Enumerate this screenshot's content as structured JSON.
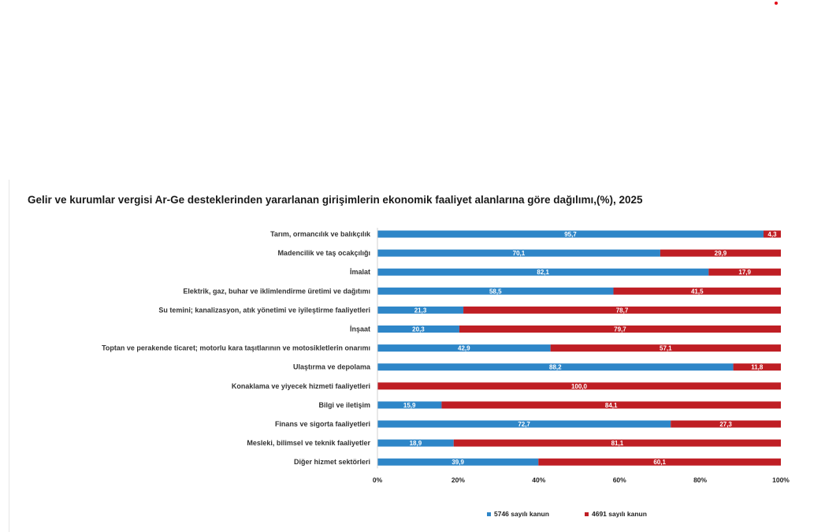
{
  "chart_data": {
    "type": "bar",
    "orientation": "horizontal-stacked-100",
    "title": "Gelir ve kurumlar vergisi Ar-Ge desteklerinden yararlanan girişimlerin ekonomik faaliyet alanlarına göre dağılımı,(%), 2025",
    "categories": [
      "Tarım, ormancılık ve balıkçılık",
      "Madencilik ve taş ocakçılığı",
      "İmalat",
      "Elektrik, gaz, buhar ve iklimlendirme üretimi ve dağıtımı",
      "Su temini; kanalizasyon, atık yönetimi ve iyileştirme faaliyetleri",
      "İnşaat",
      "Toptan ve perakende ticaret; motorlu kara taşıtlarının ve motosikletlerin onarımı",
      "Ulaştırma ve depolama",
      "Konaklama ve yiyecek hizmeti faaliyetleri",
      "Bilgi ve iletişim",
      "Finans ve sigorta faaliyetleri",
      "Mesleki, bilimsel ve teknik faaliyetler",
      "Diğer hizmet sektörleri"
    ],
    "series": [
      {
        "name": "5746 sayılı kanun",
        "color": "#2e86c8",
        "values": [
          95.7,
          70.1,
          82.1,
          58.5,
          21.3,
          20.3,
          42.9,
          88.2,
          0,
          15.9,
          72.7,
          18.9,
          39.9
        ],
        "labels": [
          "95,7",
          "70,1",
          "82,1",
          "58,5",
          "21,3",
          "20,3",
          "42,9",
          "88,2",
          "0",
          "15,9",
          "72,7",
          "18,9",
          "39,9"
        ]
      },
      {
        "name": "4691 sayılı kanun",
        "color": "#bf1e24",
        "values": [
          4.3,
          29.9,
          17.9,
          41.5,
          78.7,
          79.7,
          57.1,
          11.8,
          100.0,
          84.1,
          27.3,
          81.1,
          60.1
        ],
        "labels": [
          "4,3",
          "29,9",
          "17,9",
          "41,5",
          "78,7",
          "79,7",
          "57,1",
          "11,8",
          "100,0",
          "84,1",
          "27,3",
          "81,1",
          "60,1"
        ]
      }
    ],
    "xlim": [
      0,
      100
    ],
    "x_ticks": [
      "0%",
      "20%",
      "40%",
      "60%",
      "80%",
      "100%"
    ],
    "legend_position": "bottom",
    "grid": false
  }
}
